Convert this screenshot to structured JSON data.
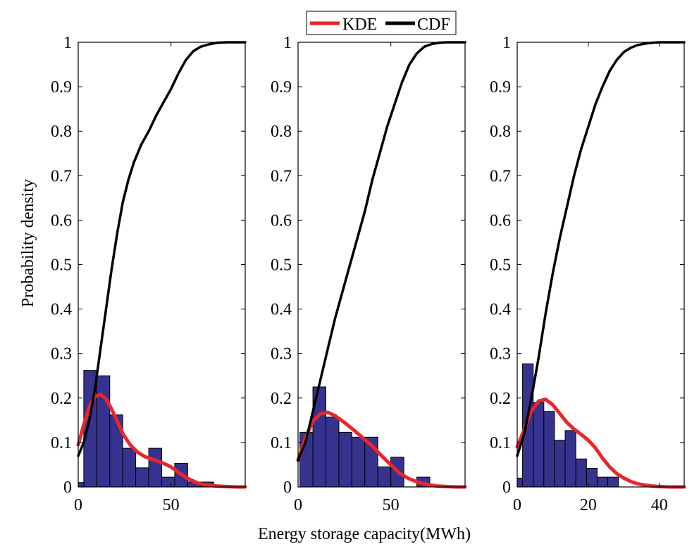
{
  "figure": {
    "ylabel": "Probability density",
    "xlabel": "Energy storage capacity(MWh)"
  },
  "legend": {
    "position": "top-center",
    "entries": [
      {
        "label": "KDE",
        "color": "#e8262b"
      },
      {
        "label": "CDF",
        "color": "#000000"
      }
    ]
  },
  "colors": {
    "bar_fill": "#36338f",
    "bar_edge": "#000000",
    "kde": "#e8262b",
    "cdf": "#000000"
  },
  "chart_data": [
    {
      "type": "bar",
      "xlim": [
        0,
        90
      ],
      "ylim": [
        0,
        1
      ],
      "xticks": [
        0,
        50
      ],
      "yticks": [
        0,
        0.1,
        0.2,
        0.3,
        0.4,
        0.5,
        0.6,
        0.7,
        0.8,
        0.9,
        1
      ],
      "ytick_labels": [
        "0",
        "0.1",
        "0.2",
        "0.3",
        "0.4",
        "0.5",
        "0.6",
        "0.7",
        "0.8",
        "0.9",
        "1"
      ],
      "histogram": {
        "bin_edges": [
          0,
          3,
          10,
          17,
          24,
          31,
          38,
          45,
          52,
          59,
          66,
          73
        ],
        "values": [
          0.01,
          0.262,
          0.25,
          0.162,
          0.087,
          0.043,
          0.087,
          0.022,
          0.053,
          0.011,
          0.011
        ]
      },
      "series": [
        {
          "name": "KDE",
          "x": [
            0,
            3,
            6,
            9,
            12,
            15,
            18,
            21,
            24,
            28,
            32,
            36,
            40,
            45,
            50,
            55,
            60,
            65,
            70,
            75,
            80,
            85,
            90
          ],
          "values": [
            0.095,
            0.14,
            0.18,
            0.203,
            0.208,
            0.198,
            0.175,
            0.148,
            0.12,
            0.095,
            0.078,
            0.068,
            0.062,
            0.055,
            0.045,
            0.03,
            0.017,
            0.008,
            0.004,
            0.002,
            0.001,
            0.0,
            0.0
          ]
        },
        {
          "name": "CDF",
          "x": [
            0,
            3,
            6,
            9,
            12,
            15,
            18,
            21,
            24,
            27,
            30,
            34,
            38,
            42,
            46,
            50,
            54,
            58,
            62,
            66,
            70,
            75,
            80,
            85,
            90
          ],
          "values": [
            0.07,
            0.1,
            0.15,
            0.22,
            0.31,
            0.4,
            0.49,
            0.57,
            0.64,
            0.69,
            0.73,
            0.77,
            0.8,
            0.835,
            0.865,
            0.895,
            0.93,
            0.96,
            0.98,
            0.99,
            0.995,
            0.999,
            1.0,
            1.0,
            1.0
          ]
        }
      ]
    },
    {
      "type": "bar",
      "xlim": [
        0,
        90
      ],
      "ylim": [
        0,
        1
      ],
      "xticks": [
        0,
        50
      ],
      "yticks": [
        0,
        0.1,
        0.2,
        0.3,
        0.4,
        0.5,
        0.6,
        0.7,
        0.8,
        0.9,
        1
      ],
      "ytick_labels": [
        "0",
        "0.1",
        "0.2",
        "0.3",
        "0.4",
        "0.5",
        "0.6",
        "0.7",
        "0.8",
        "0.9",
        "1"
      ],
      "histogram": {
        "bin_edges": [
          1,
          8,
          15,
          22,
          29,
          36,
          43,
          50,
          57,
          64,
          71
        ],
        "values": [
          0.123,
          0.225,
          0.157,
          0.123,
          0.112,
          0.112,
          0.045,
          0.067,
          0.0,
          0.022
        ]
      },
      "series": [
        {
          "name": "KDE",
          "x": [
            0,
            4,
            8,
            12,
            16,
            20,
            25,
            30,
            35,
            40,
            45,
            50,
            55,
            60,
            65,
            70,
            75,
            80,
            85,
            90
          ],
          "values": [
            0.06,
            0.11,
            0.148,
            0.165,
            0.168,
            0.16,
            0.145,
            0.128,
            0.11,
            0.092,
            0.07,
            0.05,
            0.03,
            0.018,
            0.01,
            0.005,
            0.002,
            0.001,
            0.0,
            0.0
          ]
        },
        {
          "name": "CDF",
          "x": [
            0,
            4,
            8,
            12,
            16,
            20,
            24,
            28,
            32,
            36,
            40,
            44,
            48,
            52,
            56,
            60,
            64,
            68,
            72,
            76,
            80,
            85,
            90
          ],
          "values": [
            0.06,
            0.1,
            0.17,
            0.24,
            0.31,
            0.38,
            0.44,
            0.5,
            0.56,
            0.62,
            0.69,
            0.75,
            0.81,
            0.86,
            0.91,
            0.95,
            0.975,
            0.99,
            0.996,
            0.999,
            1.0,
            1.0,
            1.0
          ]
        }
      ]
    },
    {
      "type": "bar",
      "xlim": [
        0,
        47
      ],
      "ylim": [
        0,
        1
      ],
      "xticks": [
        0,
        20,
        40
      ],
      "yticks": [
        0,
        0.1,
        0.2,
        0.3,
        0.4,
        0.5,
        0.6,
        0.7,
        0.8,
        0.9,
        1
      ],
      "ytick_labels": [
        "0",
        "0.1",
        "0.2",
        "0.3",
        "0.4",
        "0.5",
        "0.6",
        "0.7",
        "0.8",
        "0.9",
        "1"
      ],
      "histogram": {
        "bin_edges": [
          0,
          1.5,
          4.5,
          7.5,
          10.5,
          13.5,
          16.5,
          19.5,
          22.5,
          25.5,
          28.5,
          31.5,
          34.5
        ],
        "values": [
          0.02,
          0.277,
          0.19,
          0.17,
          0.105,
          0.127,
          0.063,
          0.042,
          0.022,
          0.022,
          0.0,
          0.0
        ]
      },
      "series": [
        {
          "name": "KDE",
          "x": [
            0,
            2,
            4,
            6,
            8,
            10,
            12,
            14,
            16,
            18,
            20,
            22,
            24,
            26,
            28,
            30,
            32,
            34,
            36,
            38,
            40,
            43,
            47
          ],
          "values": [
            0.09,
            0.13,
            0.17,
            0.193,
            0.197,
            0.185,
            0.165,
            0.145,
            0.13,
            0.118,
            0.105,
            0.088,
            0.065,
            0.045,
            0.03,
            0.02,
            0.012,
            0.007,
            0.004,
            0.002,
            0.001,
            0.0,
            0.0
          ]
        },
        {
          "name": "CDF",
          "x": [
            0,
            2,
            4,
            6,
            8,
            10,
            12,
            14,
            16,
            18,
            20,
            22,
            24,
            26,
            28,
            30,
            32,
            34,
            36,
            38,
            40,
            43,
            47
          ],
          "values": [
            0.07,
            0.12,
            0.2,
            0.29,
            0.39,
            0.48,
            0.56,
            0.63,
            0.7,
            0.76,
            0.81,
            0.86,
            0.9,
            0.935,
            0.96,
            0.978,
            0.988,
            0.994,
            0.997,
            0.999,
            1.0,
            1.0,
            1.0
          ]
        }
      ]
    }
  ]
}
